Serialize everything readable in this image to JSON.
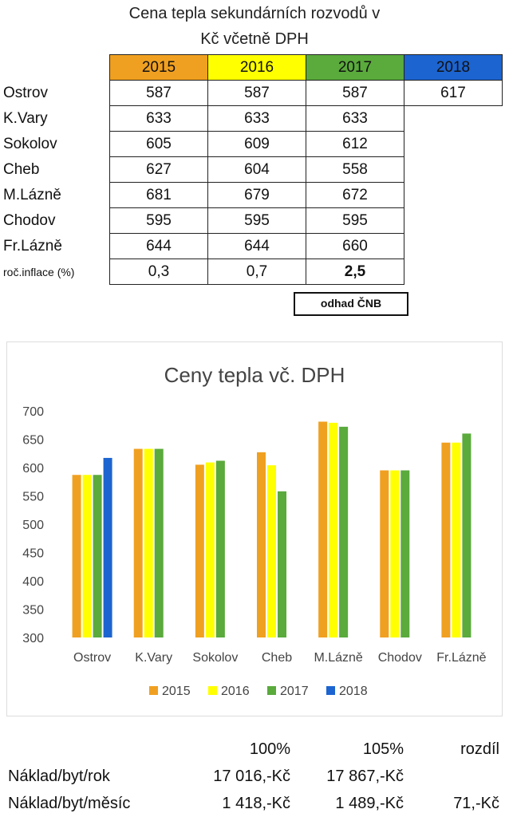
{
  "header": {
    "title_line1": "Cena tepla sekundárních rozvodů v",
    "title_line2": "Kč včetně DPH"
  },
  "table": {
    "years": [
      "2015",
      "2016",
      "2017",
      "2018"
    ],
    "rows": [
      {
        "city": "Ostrov",
        "values": [
          "587",
          "587",
          "587",
          "617"
        ]
      },
      {
        "city": "K.Vary",
        "values": [
          "633",
          "633",
          "633",
          ""
        ]
      },
      {
        "city": "Sokolov",
        "values": [
          "605",
          "609",
          "612",
          ""
        ]
      },
      {
        "city": "Cheb",
        "values": [
          "627",
          "604",
          "558",
          ""
        ]
      },
      {
        "city": "M.Lázně",
        "values": [
          "681",
          "679",
          "672",
          ""
        ]
      },
      {
        "city": "Chodov",
        "values": [
          "595",
          "595",
          "595",
          ""
        ]
      },
      {
        "city": "Fr.Lázně",
        "values": [
          "644",
          "644",
          "660",
          ""
        ]
      }
    ],
    "inflation_label": "roč.inflace (%)",
    "inflation": [
      "0,3",
      "0,7",
      "2,5"
    ],
    "note": "odhad ČNB"
  },
  "colors": {
    "2015": "#f0a020",
    "2016": "#ffff00",
    "2017": "#5aaa3c",
    "2018": "#1c64d0"
  },
  "chart_data": {
    "type": "bar",
    "title": "Ceny tepla vč. DPH",
    "categories": [
      "Ostrov",
      "K.Vary",
      "Sokolov",
      "Cheb",
      "M.Lázně",
      "Chodov",
      "Fr.Lázně"
    ],
    "series": [
      {
        "name": "2015",
        "color": "#f0a020",
        "values": [
          587,
          633,
          605,
          627,
          681,
          595,
          644
        ]
      },
      {
        "name": "2016",
        "color": "#ffff00",
        "values": [
          587,
          633,
          609,
          604,
          679,
          595,
          644
        ]
      },
      {
        "name": "2017",
        "color": "#5aaa3c",
        "values": [
          587,
          633,
          612,
          558,
          672,
          595,
          660
        ]
      },
      {
        "name": "2018",
        "color": "#1c64d0",
        "values": [
          617,
          null,
          null,
          null,
          null,
          null,
          null
        ]
      }
    ],
    "ylim": [
      300,
      700
    ],
    "yticks": [
      300,
      350,
      400,
      450,
      500,
      550,
      600,
      650,
      700
    ],
    "grid": false,
    "legend": "bottom"
  },
  "costs": {
    "headers": [
      "100%",
      "105%",
      "rozdíl"
    ],
    "rows": [
      {
        "label": "Náklad/byt/rok",
        "v1": "17 016,-Kč",
        "v2": "17 867,-Kč",
        "v3": ""
      },
      {
        "label": "Náklad/byt/měsíc",
        "v1": "1 418,-Kč",
        "v2": "1 489,-Kč",
        "v3": "71,-Kč"
      }
    ]
  }
}
